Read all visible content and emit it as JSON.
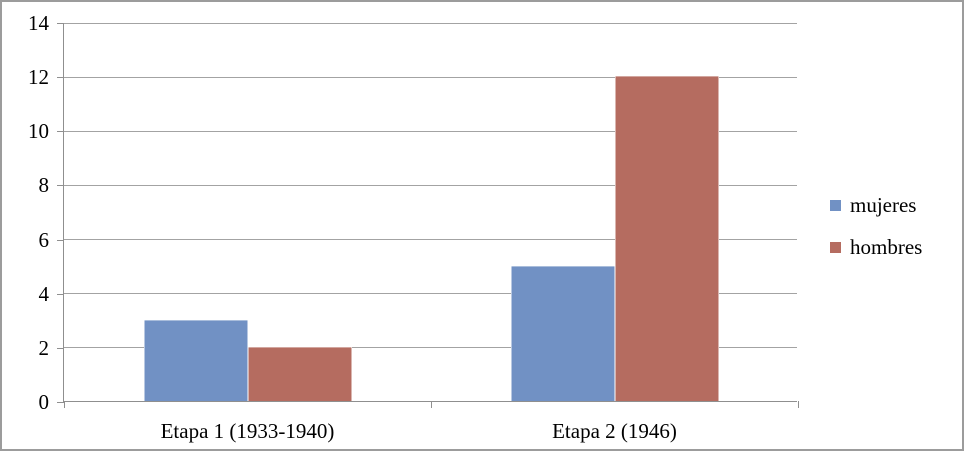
{
  "chart_data": {
    "type": "bar",
    "title": "",
    "xlabel": "",
    "ylabel": "",
    "categories": [
      "Etapa 1 (1933-1940)",
      "Etapa 2 (1946)"
    ],
    "series": [
      {
        "name": "mujeres",
        "color": "#7191C4",
        "values": [
          3,
          5
        ]
      },
      {
        "name": "hombres",
        "color": "#B56C60",
        "values": [
          2,
          12
        ]
      }
    ],
    "ylim": [
      0,
      14
    ],
    "ytick_step": 2,
    "ytick_labels": [
      "0",
      "2",
      "4",
      "6",
      "8",
      "10",
      "12",
      "14"
    ],
    "grid": "horizontal",
    "legend": {
      "position": "right",
      "entries": [
        "mujeres",
        "hombres"
      ]
    }
  },
  "colors": {
    "series_mujeres": "#7191C4",
    "series_hombres": "#B56C60",
    "gridline": "#A3A3A3",
    "axis": "#8F8F8F",
    "frame_border": "#9C9C9C",
    "text": "#000000",
    "background": "#FFFFFF"
  }
}
